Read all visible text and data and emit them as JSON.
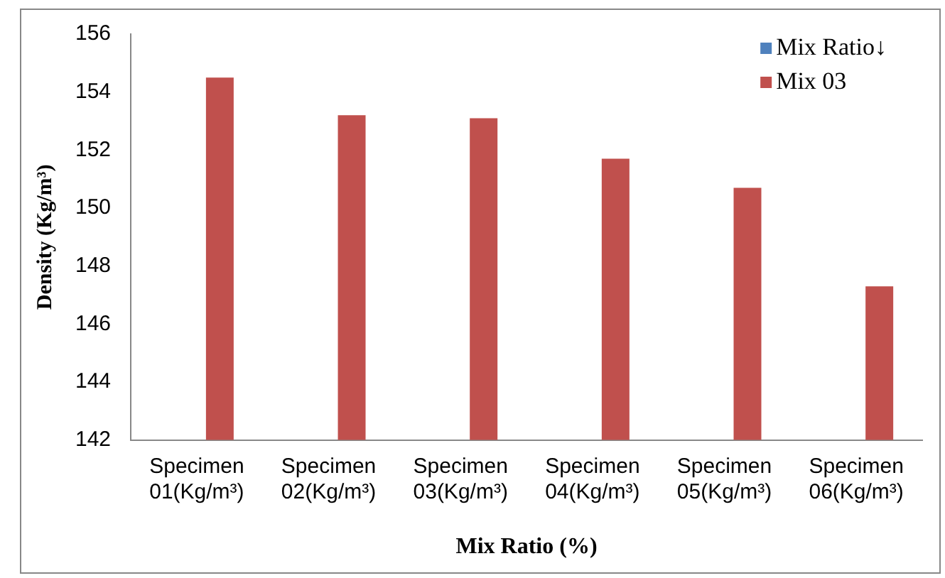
{
  "chart_data": {
    "type": "bar",
    "xlabel": "Mix Ratio (%)",
    "ylabel": "Density (Kg/m³)",
    "categories": [
      "Specimen 01(Kg/m³)",
      "Specimen 02(Kg/m³)",
      "Specimen 03(Kg/m³)",
      "Specimen 04(Kg/m³)",
      "Specimen 05(Kg/m³)",
      "Specimen 06(Kg/m³)"
    ],
    "series": [
      {
        "name": "Mix Ratio↓",
        "color": "#4f81bd",
        "values": [
          null,
          null,
          null,
          null,
          null,
          null
        ]
      },
      {
        "name": "Mix 03",
        "color": "#c0504d",
        "values": [
          154.5,
          153.2,
          153.1,
          151.7,
          150.7,
          147.3
        ]
      }
    ],
    "ylim": [
      142,
      156
    ],
    "yticks": [
      142,
      144,
      146,
      148,
      150,
      152,
      154,
      156
    ],
    "grid": false,
    "legend": "top right"
  }
}
